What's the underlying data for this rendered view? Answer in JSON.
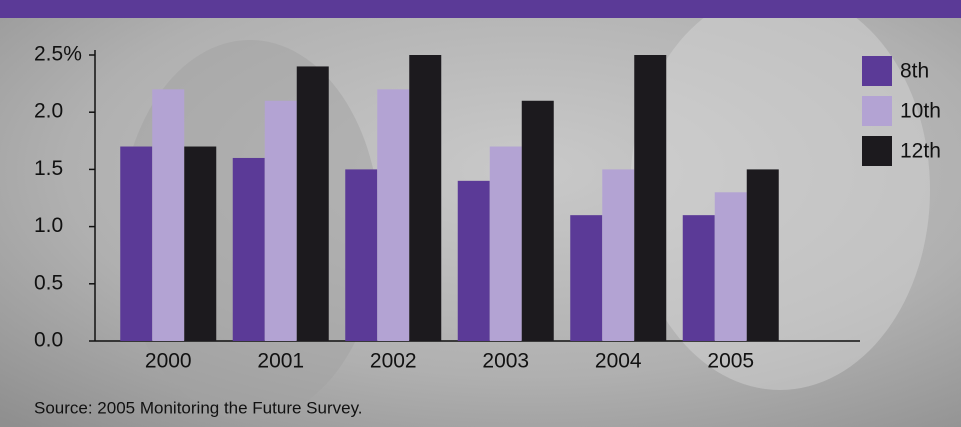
{
  "chart_data": {
    "type": "bar",
    "categories": [
      "2000",
      "2001",
      "2002",
      "2003",
      "2004",
      "2005"
    ],
    "series": [
      {
        "name": "8th",
        "color": "#5b3a97",
        "values": [
          1.7,
          1.6,
          1.5,
          1.4,
          1.1,
          1.1
        ]
      },
      {
        "name": "10th",
        "color": "#b3a3d3",
        "values": [
          2.2,
          2.1,
          2.2,
          1.7,
          1.5,
          1.3
        ]
      },
      {
        "name": "12th",
        "color": "#1c1a1e",
        "values": [
          1.7,
          2.4,
          2.5,
          2.1,
          2.5,
          1.5
        ]
      }
    ],
    "ylim": [
      0,
      2.5
    ],
    "yticks": [
      {
        "value": 0,
        "label": "0.0"
      },
      0.5,
      {
        "value": 1,
        "label": "1.0"
      },
      1.5,
      {
        "value": 2,
        "label": "2.0"
      },
      {
        "value": 2.5,
        "label": "2.5%"
      }
    ],
    "legend": "right",
    "source": "Source: 2005 Monitoring the Future Survey."
  }
}
